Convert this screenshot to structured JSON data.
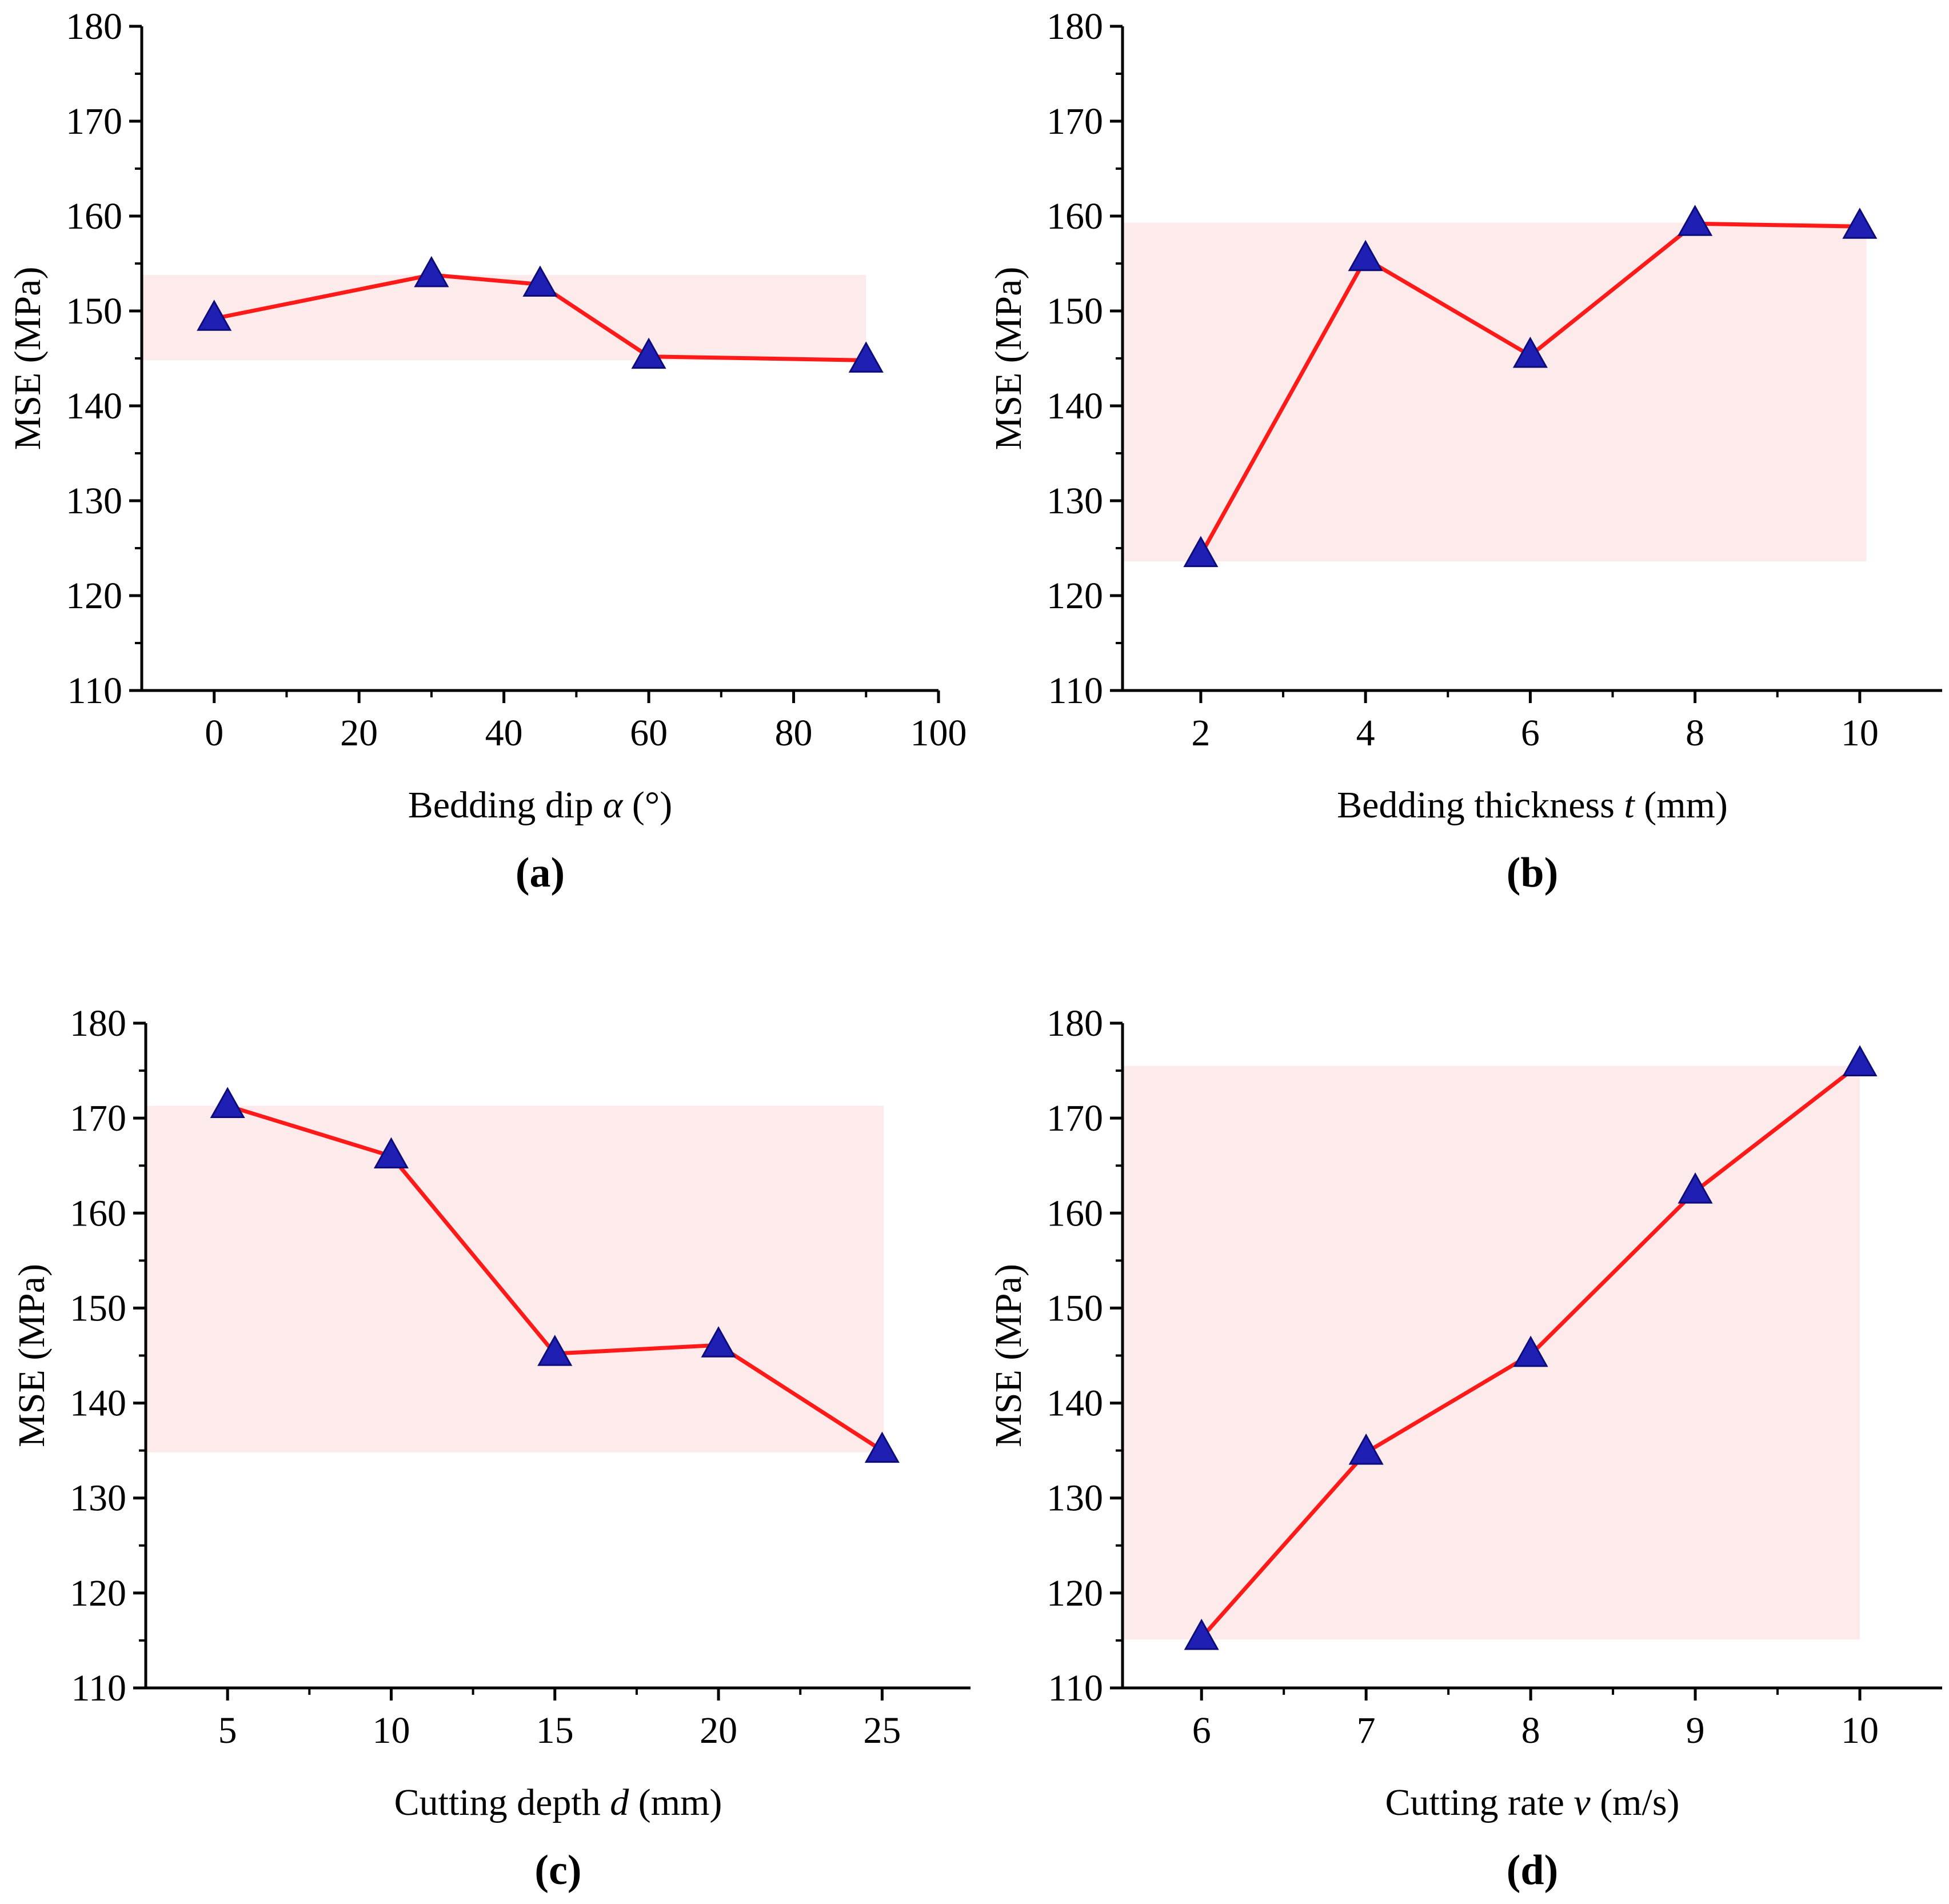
{
  "colors": {
    "line": "#ff1a1a",
    "marker": "#1f1fb4",
    "marker_edge": "#0d0d7a",
    "band": "#fdeaea",
    "axis": "#000000"
  },
  "chart_data": [
    {
      "type": "line",
      "panel_label": "(a)",
      "xlabel_parts": [
        "Bedding dip ",
        "α",
        " (°)"
      ],
      "ylabel": "MSE (MPa)",
      "x": [
        0,
        30,
        45,
        60,
        90
      ],
      "y": [
        149.2,
        153.8,
        152.8,
        145.2,
        144.8
      ],
      "xlim": [
        -10,
        100
      ],
      "ylim": [
        110,
        180
      ],
      "xticks": [
        0,
        20,
        40,
        60,
        80,
        100
      ],
      "yticks": [
        110,
        120,
        130,
        140,
        150,
        160,
        170,
        180
      ],
      "band": {
        "x": [
          -10,
          90
        ],
        "y": [
          144.8,
          153.8
        ]
      },
      "marker": "triangle",
      "grid": false
    },
    {
      "type": "line",
      "panel_label": "(b)",
      "xlabel_parts": [
        "Bedding thickness ",
        "t",
        " (mm)"
      ],
      "ylabel": "MSE (MPa)",
      "x": [
        2,
        4,
        6,
        8,
        10
      ],
      "y": [
        124.3,
        155.5,
        145.3,
        159.2,
        158.9
      ],
      "xlim": [
        1.05,
        11.0
      ],
      "ylim": [
        110,
        180
      ],
      "xticks": [
        2,
        4,
        6,
        8,
        10
      ],
      "yticks": [
        110,
        120,
        130,
        140,
        150,
        160,
        170,
        180
      ],
      "band": {
        "x": [
          1.05,
          10.08
        ],
        "y": [
          123.6,
          159.3
        ]
      },
      "marker": "triangle",
      "grid": false
    },
    {
      "type": "line",
      "panel_label": "(c)",
      "xlabel_parts": [
        "Cutting depth ",
        "d",
        " (mm)"
      ],
      "ylabel": "MSE (MPa)",
      "x": [
        5,
        10,
        15,
        20,
        25
      ],
      "y": [
        171.3,
        166.0,
        145.2,
        146.1,
        135.0
      ],
      "xlim": [
        2.5,
        27.7
      ],
      "ylim": [
        110,
        180
      ],
      "xticks": [
        5,
        10,
        15,
        20,
        25
      ],
      "yticks": [
        110,
        120,
        130,
        140,
        150,
        160,
        170,
        180
      ],
      "band": {
        "x": [
          2.5,
          25.05
        ],
        "y": [
          134.8,
          171.3
        ]
      },
      "marker": "triangle",
      "grid": false
    },
    {
      "type": "line",
      "panel_label": "(d)",
      "xlabel_parts": [
        "Cutting rate ",
        "v",
        " (m/s)"
      ],
      "ylabel": "MSE (MPa)",
      "x": [
        6,
        7,
        8,
        9,
        10
      ],
      "y": [
        115.3,
        134.8,
        145.1,
        162.3,
        175.7
      ],
      "xlim": [
        5.52,
        10.5
      ],
      "ylim": [
        110,
        180
      ],
      "xticks": [
        6,
        7,
        8,
        9,
        10
      ],
      "yticks": [
        110,
        120,
        130,
        140,
        150,
        160,
        170,
        180
      ],
      "band": {
        "x": [
          5.52,
          10.0
        ],
        "y": [
          115.1,
          175.5
        ]
      },
      "marker": "triangle",
      "grid": false
    }
  ]
}
